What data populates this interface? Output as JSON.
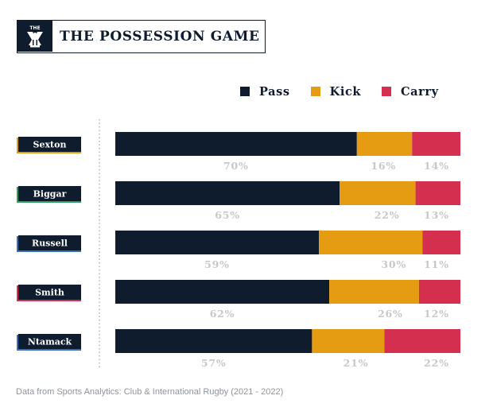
{
  "header": {
    "logo_text": "THE",
    "title": "THE POSSESSION GAME"
  },
  "colors": {
    "navy": "#0f1c2e",
    "gold": "#e59b12",
    "red": "#d42f4f",
    "label_gray": "#c8c8c8"
  },
  "legend": [
    {
      "label": "Pass",
      "color": "#0f1c2e"
    },
    {
      "label": "Kick",
      "color": "#e59b12"
    },
    {
      "label": "Carry",
      "color": "#d42f4f"
    }
  ],
  "chart_data": {
    "type": "bar",
    "orientation": "horizontal",
    "stacked": true,
    "categories": [
      "Sexton",
      "Biggar",
      "Russell",
      "Smith",
      "Ntamack"
    ],
    "category_accent_colors": [
      "#e59b12",
      "#2f9e5e",
      "#3a6fb5",
      "#d42f4f",
      "#3a6fb5"
    ],
    "series": [
      {
        "name": "Pass",
        "color": "#0f1c2e",
        "values": [
          70,
          65,
          59,
          62,
          57
        ],
        "labels": [
          "70%",
          "65%",
          "59%",
          "62%",
          "57%"
        ]
      },
      {
        "name": "Kick",
        "color": "#e59b12",
        "values": [
          16,
          22,
          30,
          26,
          21
        ],
        "labels": [
          "16%",
          "22%",
          "30%",
          "26%",
          "21%"
        ]
      },
      {
        "name": "Carry",
        "color": "#d42f4f",
        "values": [
          14,
          13,
          11,
          12,
          22
        ],
        "labels": [
          "14%",
          "13%",
          "11%",
          "12%",
          "22%"
        ]
      }
    ],
    "xlim": [
      0,
      100
    ],
    "legend_position": "top-right",
    "grid": false
  },
  "footer": {
    "source": "Data from Sports Analytics: Club & International Rugby (2021 - 2022)"
  }
}
